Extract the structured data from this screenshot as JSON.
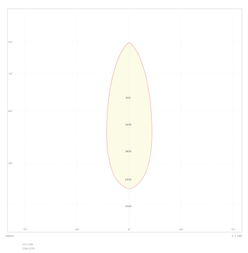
{
  "plot": {
    "y_ticks": [
      "90°",
      "75°",
      "60°",
      "45°"
    ],
    "x_ticks": [
      "75°",
      "45°",
      "0°",
      "45°",
      "75°"
    ],
    "iso_labels": [
      "900",
      "1400",
      "1800",
      "2300",
      "3300"
    ],
    "colors": {
      "beam_fill": "#fcfbe6",
      "beam_edge": "#f3b8b8",
      "grid": "#e8e8e8"
    }
  },
  "footer": {
    "left_corner": "cd/klm",
    "right_corner": "C = 180",
    "legend_line1": "C0-C180",
    "legend_line2": "C90-C270"
  }
}
